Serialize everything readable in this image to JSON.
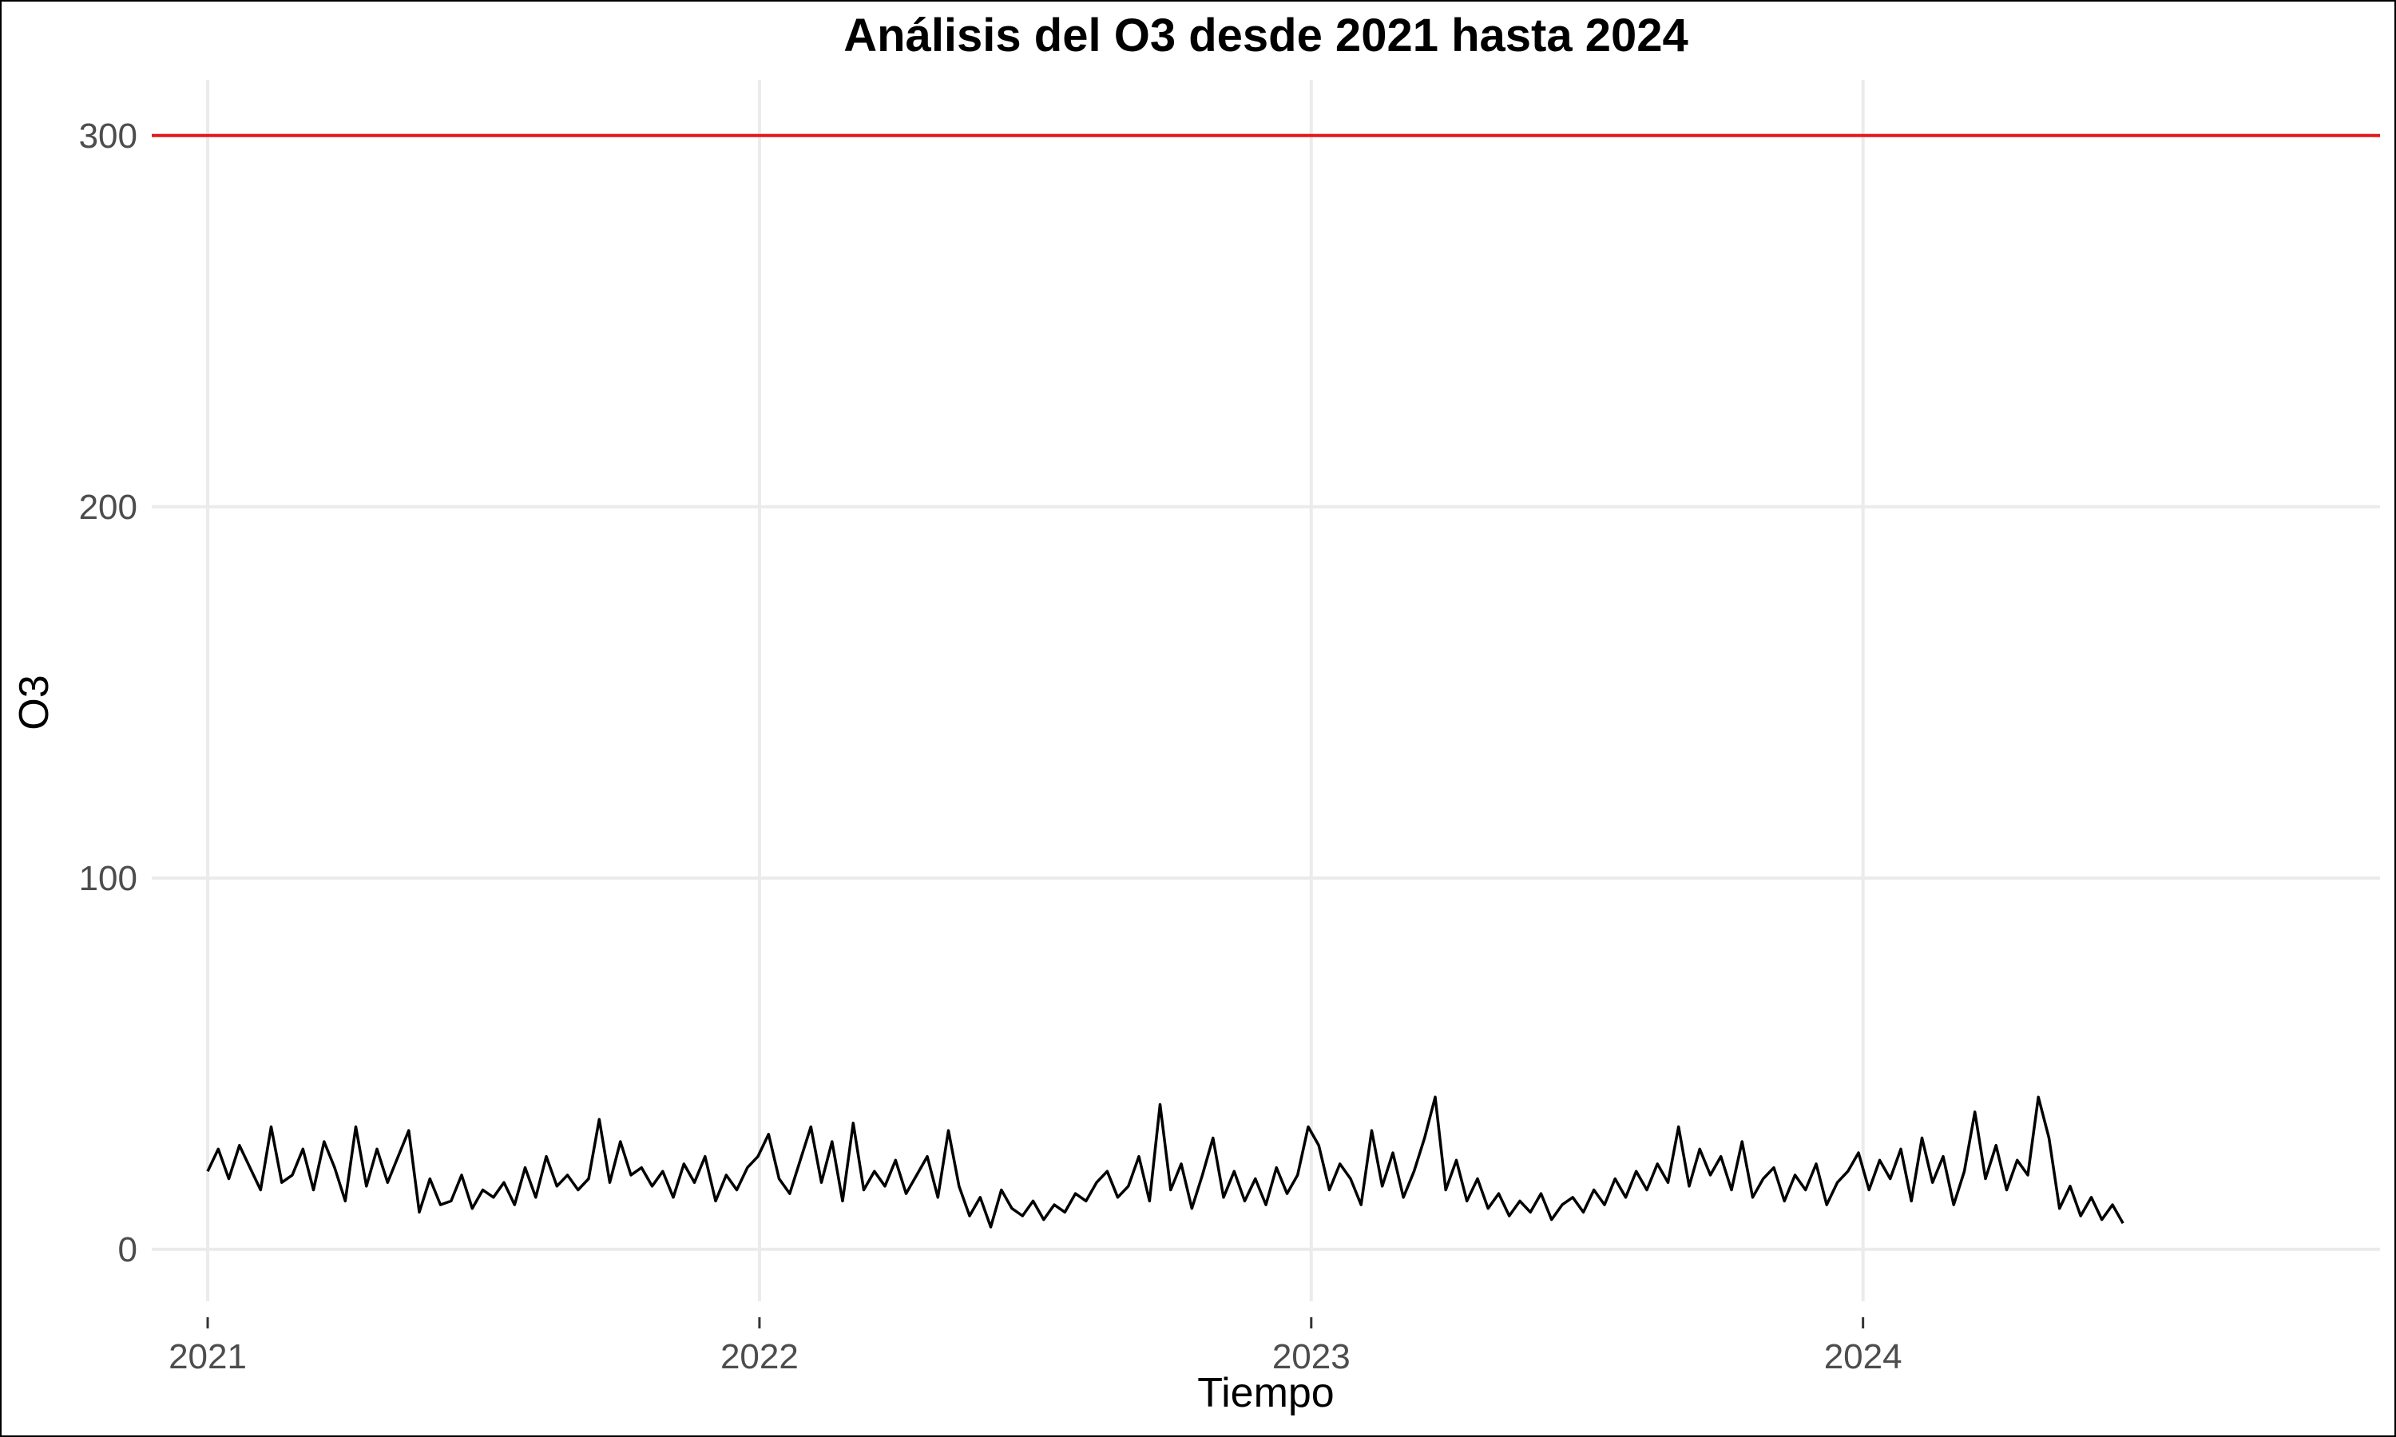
{
  "chart_data": {
    "type": "line",
    "title": "Análisis del O3 desde 2021 hasta 2024",
    "xlabel": "Tiempo",
    "ylabel": "O3",
    "xlim": [
      "2020-11-25",
      "2024-12-08"
    ],
    "ylim": [
      -14,
      315
    ],
    "x_ticks": [
      "2021",
      "2022",
      "2023",
      "2024"
    ],
    "y_ticks": [
      0,
      100,
      200,
      300
    ],
    "grid": true,
    "legend": "none",
    "reference_line": {
      "y": 300,
      "color": "#e41a1c"
    },
    "series": [
      {
        "color": "#000000",
        "points": [
          [
            "2021-01-01",
            21
          ],
          [
            "2021-01-08",
            27
          ],
          [
            "2021-01-15",
            19
          ],
          [
            "2021-01-22",
            28
          ],
          [
            "2021-01-29",
            22
          ],
          [
            "2021-02-05",
            16
          ],
          [
            "2021-02-12",
            33
          ],
          [
            "2021-02-19",
            18
          ],
          [
            "2021-02-26",
            20
          ],
          [
            "2021-03-05",
            27
          ],
          [
            "2021-03-12",
            16
          ],
          [
            "2021-03-19",
            29
          ],
          [
            "2021-03-26",
            22
          ],
          [
            "2021-04-02",
            13
          ],
          [
            "2021-04-09",
            33
          ],
          [
            "2021-04-16",
            17
          ],
          [
            "2021-04-23",
            27
          ],
          [
            "2021-04-30",
            18
          ],
          [
            "2021-05-07",
            25
          ],
          [
            "2021-05-14",
            32
          ],
          [
            "2021-05-21",
            10
          ],
          [
            "2021-05-28",
            19
          ],
          [
            "2021-06-04",
            12
          ],
          [
            "2021-06-11",
            13
          ],
          [
            "2021-06-18",
            20
          ],
          [
            "2021-06-25",
            11
          ],
          [
            "2021-07-02",
            16
          ],
          [
            "2021-07-09",
            14
          ],
          [
            "2021-07-16",
            18
          ],
          [
            "2021-07-23",
            12
          ],
          [
            "2021-07-30",
            22
          ],
          [
            "2021-08-06",
            14
          ],
          [
            "2021-08-13",
            25
          ],
          [
            "2021-08-20",
            17
          ],
          [
            "2021-08-27",
            20
          ],
          [
            "2021-09-03",
            16
          ],
          [
            "2021-09-10",
            19
          ],
          [
            "2021-09-17",
            35
          ],
          [
            "2021-09-24",
            18
          ],
          [
            "2021-10-01",
            29
          ],
          [
            "2021-10-08",
            20
          ],
          [
            "2021-10-15",
            22
          ],
          [
            "2021-10-22",
            17
          ],
          [
            "2021-10-29",
            21
          ],
          [
            "2021-11-05",
            14
          ],
          [
            "2021-11-12",
            23
          ],
          [
            "2021-11-19",
            18
          ],
          [
            "2021-11-26",
            25
          ],
          [
            "2021-12-03",
            13
          ],
          [
            "2021-12-10",
            20
          ],
          [
            "2021-12-17",
            16
          ],
          [
            "2021-12-24",
            22
          ],
          [
            "2021-12-31",
            25
          ],
          [
            "2022-01-07",
            31
          ],
          [
            "2022-01-14",
            19
          ],
          [
            "2022-01-21",
            15
          ],
          [
            "2022-01-28",
            24
          ],
          [
            "2022-02-04",
            33
          ],
          [
            "2022-02-11",
            18
          ],
          [
            "2022-02-18",
            29
          ],
          [
            "2022-02-25",
            13
          ],
          [
            "2022-03-04",
            34
          ],
          [
            "2022-03-11",
            16
          ],
          [
            "2022-03-18",
            21
          ],
          [
            "2022-03-25",
            17
          ],
          [
            "2022-04-01",
            24
          ],
          [
            "2022-04-08",
            15
          ],
          [
            "2022-04-15",
            20
          ],
          [
            "2022-04-22",
            25
          ],
          [
            "2022-04-29",
            14
          ],
          [
            "2022-05-06",
            32
          ],
          [
            "2022-05-13",
            17
          ],
          [
            "2022-05-20",
            9
          ],
          [
            "2022-05-27",
            14
          ],
          [
            "2022-06-03",
            6
          ],
          [
            "2022-06-10",
            16
          ],
          [
            "2022-06-17",
            11
          ],
          [
            "2022-06-24",
            9
          ],
          [
            "2022-07-01",
            13
          ],
          [
            "2022-07-08",
            8
          ],
          [
            "2022-07-15",
            12
          ],
          [
            "2022-07-22",
            10
          ],
          [
            "2022-07-29",
            15
          ],
          [
            "2022-08-05",
            13
          ],
          [
            "2022-08-12",
            18
          ],
          [
            "2022-08-19",
            21
          ],
          [
            "2022-08-26",
            14
          ],
          [
            "2022-09-02",
            17
          ],
          [
            "2022-09-09",
            25
          ],
          [
            "2022-09-16",
            13
          ],
          [
            "2022-09-23",
            39
          ],
          [
            "2022-09-30",
            16
          ],
          [
            "2022-10-07",
            23
          ],
          [
            "2022-10-14",
            11
          ],
          [
            "2022-10-21",
            20
          ],
          [
            "2022-10-28",
            30
          ],
          [
            "2022-11-04",
            14
          ],
          [
            "2022-11-11",
            21
          ],
          [
            "2022-11-18",
            13
          ],
          [
            "2022-11-25",
            19
          ],
          [
            "2022-12-02",
            12
          ],
          [
            "2022-12-09",
            22
          ],
          [
            "2022-12-16",
            15
          ],
          [
            "2022-12-23",
            20
          ],
          [
            "2022-12-30",
            33
          ],
          [
            "2023-01-06",
            28
          ],
          [
            "2023-01-13",
            16
          ],
          [
            "2023-01-20",
            23
          ],
          [
            "2023-01-27",
            19
          ],
          [
            "2023-02-03",
            12
          ],
          [
            "2023-02-10",
            32
          ],
          [
            "2023-02-17",
            17
          ],
          [
            "2023-02-24",
            26
          ],
          [
            "2023-03-03",
            14
          ],
          [
            "2023-03-10",
            21
          ],
          [
            "2023-03-17",
            30
          ],
          [
            "2023-03-24",
            41
          ],
          [
            "2023-03-31",
            16
          ],
          [
            "2023-04-07",
            24
          ],
          [
            "2023-04-14",
            13
          ],
          [
            "2023-04-21",
            19
          ],
          [
            "2023-04-28",
            11
          ],
          [
            "2023-05-05",
            15
          ],
          [
            "2023-05-12",
            9
          ],
          [
            "2023-05-19",
            13
          ],
          [
            "2023-05-26",
            10
          ],
          [
            "2023-06-02",
            15
          ],
          [
            "2023-06-09",
            8
          ],
          [
            "2023-06-16",
            12
          ],
          [
            "2023-06-23",
            14
          ],
          [
            "2023-06-30",
            10
          ],
          [
            "2023-07-07",
            16
          ],
          [
            "2023-07-14",
            12
          ],
          [
            "2023-07-21",
            19
          ],
          [
            "2023-07-28",
            14
          ],
          [
            "2023-08-04",
            21
          ],
          [
            "2023-08-11",
            16
          ],
          [
            "2023-08-18",
            23
          ],
          [
            "2023-08-25",
            18
          ],
          [
            "2023-09-01",
            33
          ],
          [
            "2023-09-08",
            17
          ],
          [
            "2023-09-15",
            27
          ],
          [
            "2023-09-22",
            20
          ],
          [
            "2023-09-29",
            25
          ],
          [
            "2023-10-06",
            16
          ],
          [
            "2023-10-13",
            29
          ],
          [
            "2023-10-20",
            14
          ],
          [
            "2023-10-27",
            19
          ],
          [
            "2023-11-03",
            22
          ],
          [
            "2023-11-10",
            13
          ],
          [
            "2023-11-17",
            20
          ],
          [
            "2023-11-24",
            16
          ],
          [
            "2023-12-01",
            23
          ],
          [
            "2023-12-08",
            12
          ],
          [
            "2023-12-15",
            18
          ],
          [
            "2023-12-22",
            21
          ],
          [
            "2023-12-29",
            26
          ],
          [
            "2024-01-05",
            16
          ],
          [
            "2024-01-12",
            24
          ],
          [
            "2024-01-19",
            19
          ],
          [
            "2024-01-26",
            27
          ],
          [
            "2024-02-02",
            13
          ],
          [
            "2024-02-09",
            30
          ],
          [
            "2024-02-16",
            18
          ],
          [
            "2024-02-23",
            25
          ],
          [
            "2024-03-01",
            12
          ],
          [
            "2024-03-08",
            21
          ],
          [
            "2024-03-15",
            37
          ],
          [
            "2024-03-22",
            19
          ],
          [
            "2024-03-29",
            28
          ],
          [
            "2024-04-05",
            16
          ],
          [
            "2024-04-12",
            24
          ],
          [
            "2024-04-19",
            20
          ],
          [
            "2024-04-26",
            41
          ],
          [
            "2024-05-03",
            30
          ],
          [
            "2024-05-10",
            11
          ],
          [
            "2024-05-17",
            17
          ],
          [
            "2024-05-24",
            9
          ],
          [
            "2024-05-31",
            14
          ],
          [
            "2024-06-07",
            8
          ],
          [
            "2024-06-14",
            12
          ],
          [
            "2024-06-21",
            7
          ]
        ]
      }
    ]
  }
}
